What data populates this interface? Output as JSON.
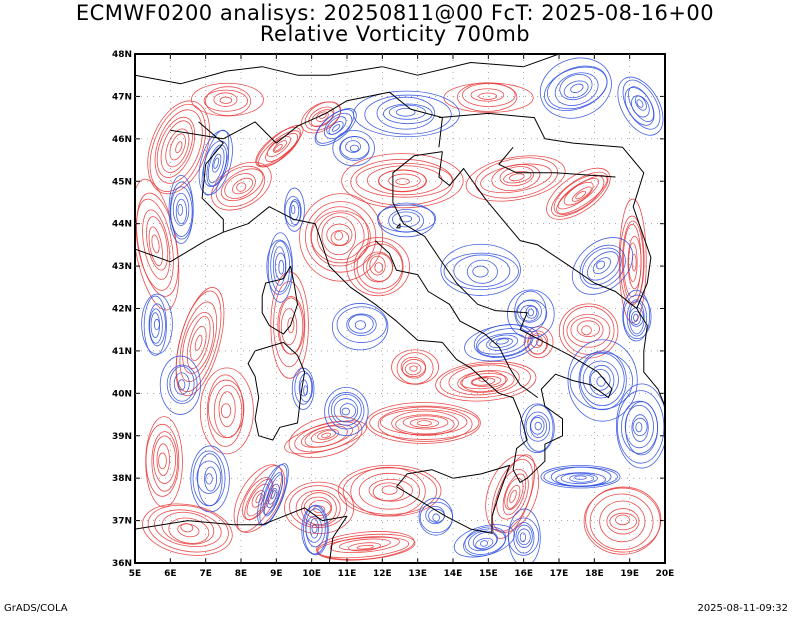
{
  "header": {
    "line1": "ECMWF0200 analisys: 20250811@00 FcT: 2025-08-16+00",
    "line2": "Relative Vorticity 700mb"
  },
  "footer": {
    "left": "GrADS/COLA",
    "right": "2025-08-11-09:32"
  },
  "map": {
    "lon_labels": [
      "5E",
      "6E",
      "7E",
      "8E",
      "9E",
      "10E",
      "11E",
      "12E",
      "13E",
      "14E",
      "15E",
      "16E",
      "17E",
      "18E",
      "19E",
      "20E"
    ],
    "lat_labels": [
      "48N",
      "47N",
      "46N",
      "45N",
      "44N",
      "43N",
      "42N",
      "41N",
      "40N",
      "39N",
      "38N",
      "37N",
      "36N"
    ],
    "lon_range": [
      5,
      20
    ],
    "lat_range": [
      36,
      48
    ],
    "colors": {
      "positive_vorticity": "#e83a3a",
      "negative_vorticity": "#2f4fe0",
      "coastline": "#000000"
    }
  }
}
